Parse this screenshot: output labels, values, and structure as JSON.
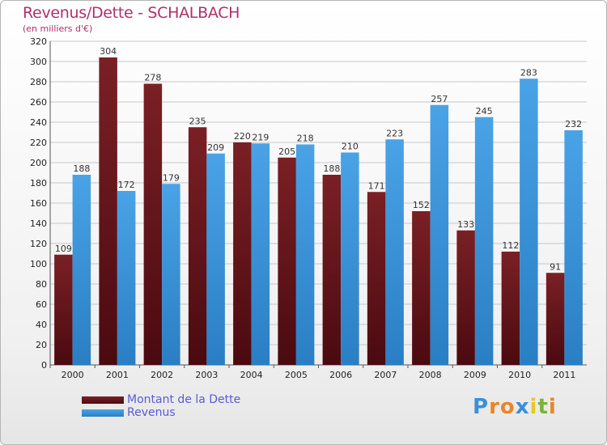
{
  "header": {
    "title": "Revenus/Dette - SCHALBACH",
    "subtitle": "(en milliers d'€)"
  },
  "colors": {
    "dette": "#7a2025",
    "dette_dark": "#4a0a10",
    "revenus": "#4aa3e6",
    "revenus_dark": "#2a7ec4",
    "title": "#b0306b",
    "legend_text": "#5b5bd6"
  },
  "chart_data": {
    "type": "bar",
    "title": "Revenus/Dette - SCHALBACH",
    "subtitle": "(en milliers d'€)",
    "categories": [
      "2000",
      "2001",
      "2002",
      "2003",
      "2004",
      "2005",
      "2006",
      "2007",
      "2008",
      "2009",
      "2010",
      "2011"
    ],
    "series": [
      {
        "name": "Montant de la Dette",
        "values": [
          109,
          304,
          278,
          235,
          220,
          205,
          188,
          171,
          152,
          133,
          112,
          91
        ]
      },
      {
        "name": "Revenus",
        "values": [
          188,
          172,
          179,
          209,
          219,
          218,
          210,
          223,
          257,
          245,
          283,
          232
        ]
      }
    ],
    "ylim": [
      0,
      320
    ],
    "yticks": [
      0,
      20,
      40,
      60,
      80,
      100,
      120,
      140,
      160,
      180,
      200,
      220,
      240,
      260,
      280,
      300,
      320
    ],
    "grid": true,
    "legend_position": "bottom-left"
  },
  "legend": {
    "items": [
      {
        "label": "Montant de la Dette"
      },
      {
        "label": "Revenus"
      }
    ]
  },
  "logo": {
    "letters": [
      "P",
      "r",
      "o",
      "x",
      "i",
      "t",
      "i"
    ],
    "colors": [
      "#3b8fd9",
      "#e8862a",
      "#e8862a",
      "#3b8fd9",
      "#e8c72a",
      "#7ab33b",
      "#e8862a"
    ]
  }
}
